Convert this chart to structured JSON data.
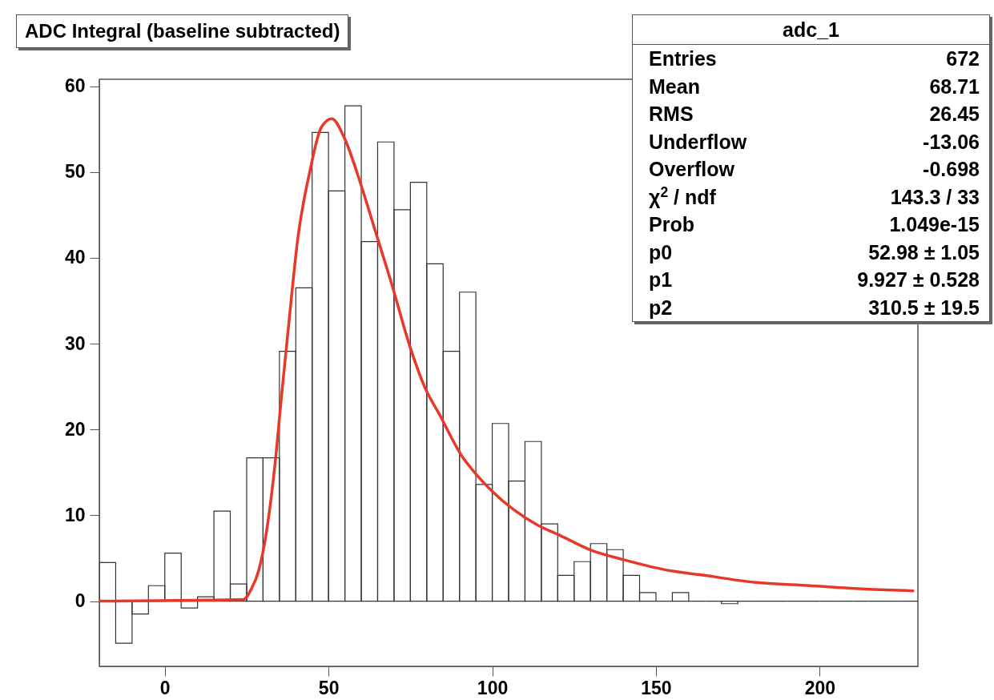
{
  "chart_data": {
    "type": "histogram",
    "title": "ADC Integral (baseline subtracted)",
    "bins": [
      -20,
      -15,
      -10,
      -5,
      0,
      5,
      10,
      15,
      20,
      25,
      30,
      35,
      40,
      45,
      50,
      55,
      60,
      65,
      70,
      75,
      80,
      85,
      90,
      95,
      100,
      105,
      110,
      115,
      120,
      125,
      130,
      135,
      140,
      145,
      150,
      155,
      160,
      165,
      170,
      175,
      180,
      185,
      190,
      195,
      200,
      205,
      210,
      215,
      220,
      225,
      230
    ],
    "values": [
      4.5,
      -4.9,
      -1.5,
      1.8,
      5.6,
      -0.8,
      0.5,
      10.5,
      2.0,
      16.7,
      16.7,
      29.1,
      36.5,
      54.6,
      47.8,
      57.7,
      41.9,
      53.5,
      45.6,
      48.8,
      39.3,
      29.1,
      36.0,
      13.6,
      20.7,
      14.0,
      18.6,
      9.0,
      3.0,
      4.6,
      6.7,
      6.0,
      3.0,
      1.0,
      0,
      1.0,
      0,
      0,
      -0.3,
      0,
      0,
      0,
      0,
      0,
      0,
      0,
      0,
      0,
      0,
      0
    ],
    "color": "#333333",
    "series": [
      {
        "type": "line",
        "color": "#e8382a",
        "x": [
          -20,
          24,
          26.4,
          28.7,
          31.1,
          33.5,
          35.8,
          38.2,
          40.6,
          44.2,
          47.8,
          51,
          54.8,
          59.5,
          64.3,
          69.1,
          75,
          79.3,
          83.8,
          90.9,
          94.6,
          100,
          113.7,
          121,
          129.8,
          140.4,
          155,
          163,
          180,
          197,
          214,
          228.5
        ],
        "values": [
          0,
          0.2,
          1.4,
          3.6,
          8.2,
          15.4,
          24.5,
          33.6,
          42.2,
          49.9,
          55.2,
          56.2,
          54,
          49,
          43.1,
          37.2,
          29.5,
          25,
          21.8,
          16.8,
          15.0,
          12.8,
          8.9,
          7.6,
          6.0,
          4.8,
          3.5,
          3.1,
          2.2,
          1.8,
          1.4,
          1.2
        ]
      }
    ],
    "xlim": [
      -20,
      230
    ],
    "xticks": [
      0,
      50,
      100,
      150,
      200
    ],
    "ylim": [
      -7.6,
      60.8
    ],
    "yticks": [
      0,
      10,
      20,
      30,
      40,
      50,
      60
    ],
    "grid": false,
    "annotations": [
      "adc_1",
      "Entries",
      "672",
      "Mean",
      "68.71",
      "RMS",
      "26.45",
      "Underflow",
      "-13.06",
      "Overflow",
      "-0.698",
      "χ$^{2}$ / ndf",
      "143.3 / 33",
      "Prob",
      "1.049e-15",
      "p0",
      "52.98 ± 1.05",
      "p1",
      "9.927 ± 0.528",
      "p2",
      "310.5 ± 19.5"
    ]
  }
}
